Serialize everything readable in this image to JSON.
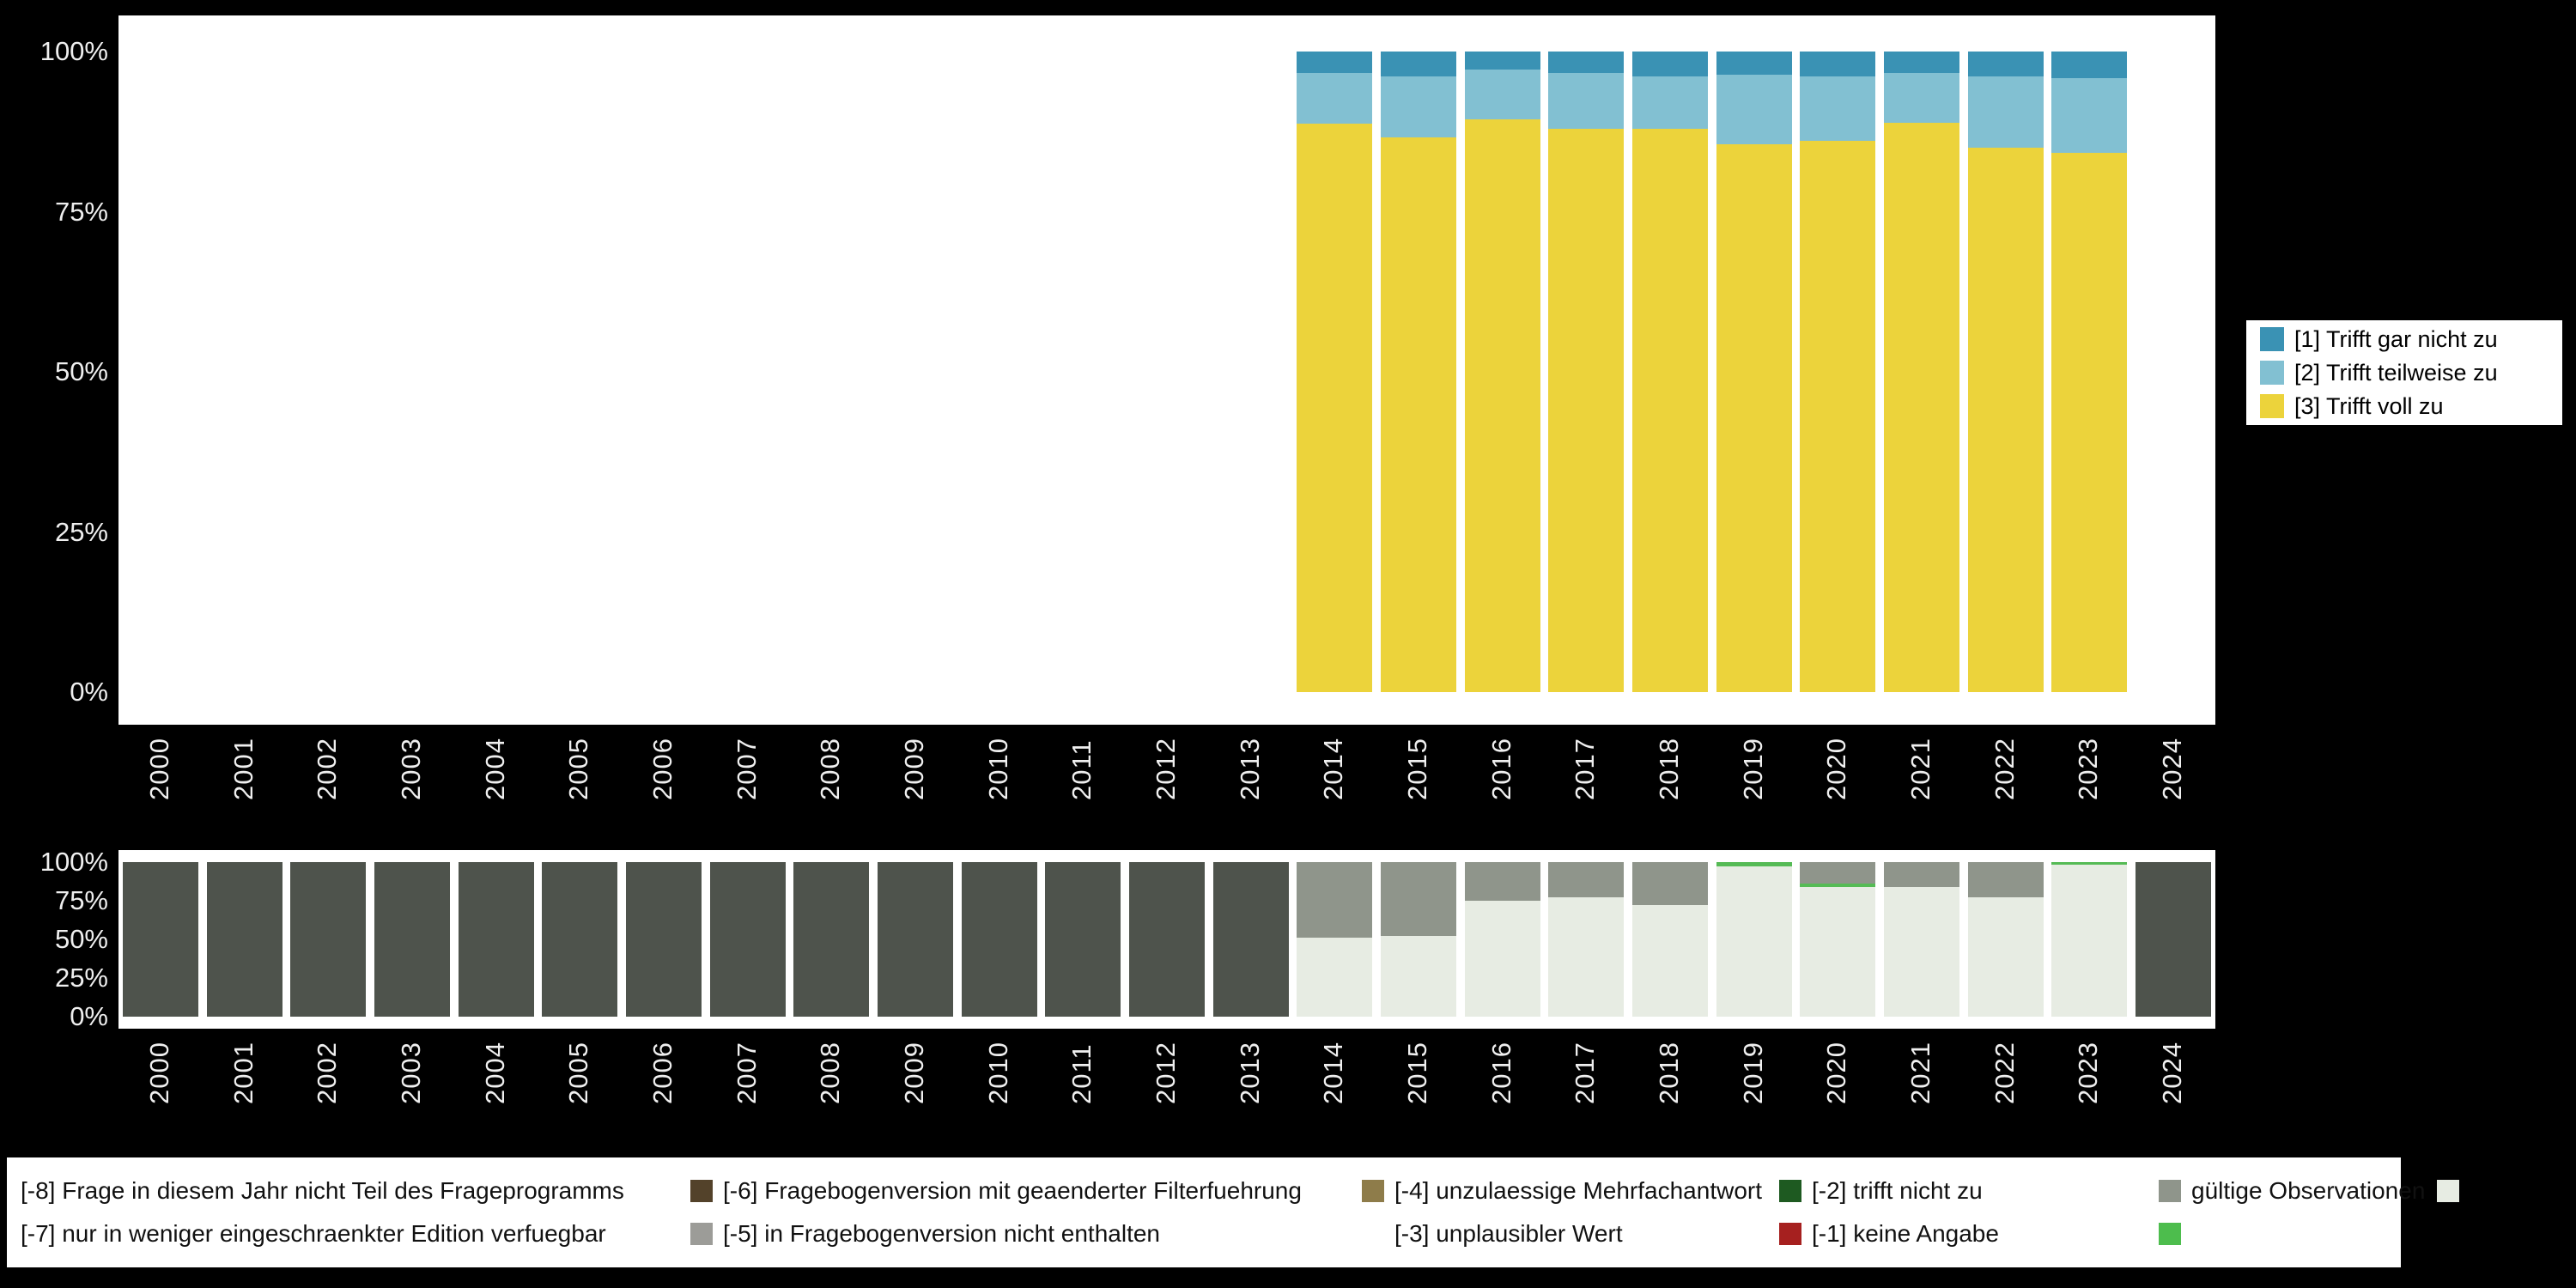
{
  "figure": {
    "background": "#000000",
    "panel_background": "#ffffff",
    "axis_text_color": "#efefef"
  },
  "chart_data": [
    {
      "type": "bar",
      "stacked": true,
      "id": "answers-by-year",
      "title": "",
      "xlabel": "",
      "ylabel": "",
      "ylim": [
        0,
        100
      ],
      "y_ticks": [
        "0%",
        "25%",
        "50%",
        "75%",
        "100%"
      ],
      "categories": [
        "2000",
        "2001",
        "2002",
        "2003",
        "2004",
        "2005",
        "2006",
        "2007",
        "2008",
        "2009",
        "2010",
        "2011",
        "2012",
        "2013",
        "2014",
        "2015",
        "2016",
        "2017",
        "2018",
        "2019",
        "2020",
        "2021",
        "2022",
        "2023",
        "2024"
      ],
      "series": [
        {
          "name": "[3] Trifft voll zu",
          "color": "#ecd33b",
          "values": [
            0,
            0,
            0,
            0,
            0,
            0,
            0,
            0,
            0,
            0,
            0,
            0,
            0,
            0,
            88.8,
            86.6,
            89.4,
            87.9,
            88.0,
            85.5,
            86.0,
            88.9,
            85.0,
            84.2,
            0
          ]
        },
        {
          "name": "[2] Trifft teilweise zu",
          "color": "#82c0d2",
          "values": [
            0,
            0,
            0,
            0,
            0,
            0,
            0,
            0,
            0,
            0,
            0,
            0,
            0,
            0,
            7.8,
            9.5,
            7.8,
            8.7,
            8.1,
            10.9,
            10.1,
            7.7,
            11.1,
            11.7,
            0
          ]
        },
        {
          "name": "[1] Trifft gar nicht zu",
          "color": "#3a92b4",
          "values": [
            0,
            0,
            0,
            0,
            0,
            0,
            0,
            0,
            0,
            0,
            0,
            0,
            0,
            0,
            3.4,
            3.9,
            2.8,
            3.4,
            3.9,
            3.6,
            3.9,
            3.4,
            3.9,
            4.1,
            0
          ]
        }
      ],
      "legend": {
        "position": "right",
        "items": [
          {
            "label": "[1] Trifft gar nicht zu",
            "color": "#3a92b4"
          },
          {
            "label": "[2] Trifft teilweise zu",
            "color": "#82c0d2"
          },
          {
            "label": "[3] Trifft voll zu",
            "color": "#ecd33b"
          }
        ]
      }
    },
    {
      "type": "bar",
      "stacked": true,
      "id": "missings-by-year",
      "title": "",
      "xlabel": "",
      "ylabel": "",
      "ylim": [
        0,
        100
      ],
      "y_ticks": [
        "0%",
        "25%",
        "50%",
        "75%",
        "100%"
      ],
      "categories": [
        "2000",
        "2001",
        "2002",
        "2003",
        "2004",
        "2005",
        "2006",
        "2007",
        "2008",
        "2009",
        "2010",
        "2011",
        "2012",
        "2013",
        "2014",
        "2015",
        "2016",
        "2017",
        "2018",
        "2019",
        "2020",
        "2021",
        "2022",
        "2023",
        "2024"
      ],
      "series": [
        {
          "name": "gültige Observationen",
          "color": "#e7ece3",
          "values": [
            0,
            0,
            0,
            0,
            0,
            0,
            0,
            0,
            0,
            0,
            0,
            0,
            0,
            0,
            51,
            52,
            75,
            77,
            72,
            97.5,
            84,
            84,
            77,
            98.5,
            0
          ]
        },
        {
          "name": "[-1] keine Angabe",
          "color": "#55bb55",
          "values": [
            0,
            0,
            0,
            0,
            0,
            0,
            0,
            0,
            0,
            0,
            0,
            0,
            0,
            0,
            0,
            0,
            0,
            0,
            0,
            2.5,
            2,
            0,
            0,
            1.5,
            0
          ]
        },
        {
          "name": "[-2] trifft nicht zu",
          "color": "#8f958b",
          "values": [
            0,
            0,
            0,
            0,
            0,
            0,
            0,
            0,
            0,
            0,
            0,
            0,
            0,
            0,
            49,
            48,
            25,
            23,
            28,
            0,
            14,
            16,
            23,
            0,
            0
          ]
        },
        {
          "name": "[-8] Frage in diesem Jahr nicht Teil des Frageprogramms",
          "color": "#4e534c",
          "values": [
            100,
            100,
            100,
            100,
            100,
            100,
            100,
            100,
            100,
            100,
            100,
            100,
            100,
            100,
            0,
            0,
            0,
            0,
            0,
            0,
            0,
            0,
            0,
            0,
            100
          ]
        }
      ],
      "legend": {
        "position": "bottom",
        "rows": [
          [
            {
              "label": "[-8] Frage in diesem Jahr nicht Teil des Frageprogramms",
              "color": "#53422a"
            },
            {
              "label": "[-6] Fragebogenversion mit geaenderter Filterfuehrung",
              "color": "#8e7c4a"
            },
            {
              "label": "[-4] unzulaessige Mehrfachantwort",
              "color": "#1e5a21"
            },
            {
              "label": "[-2] trifft nicht zu",
              "color": "#8f958b"
            },
            {
              "label": "gültige Observationen",
              "color": "#e7ece3"
            }
          ],
          [
            {
              "label": "[-7] nur in weniger eingeschraenkter Edition verfuegbar",
              "color": "#9c9c98"
            },
            {
              "label": "[-5] in Fragebogenversion nicht enthalten",
              "color": "#ffffff"
            },
            {
              "label": "[-3] unplausibler Wert",
              "color": "#a6201f"
            },
            {
              "label": "[-1] keine Angabe",
              "color": "#4dbd4d"
            },
            null
          ]
        ]
      }
    }
  ]
}
